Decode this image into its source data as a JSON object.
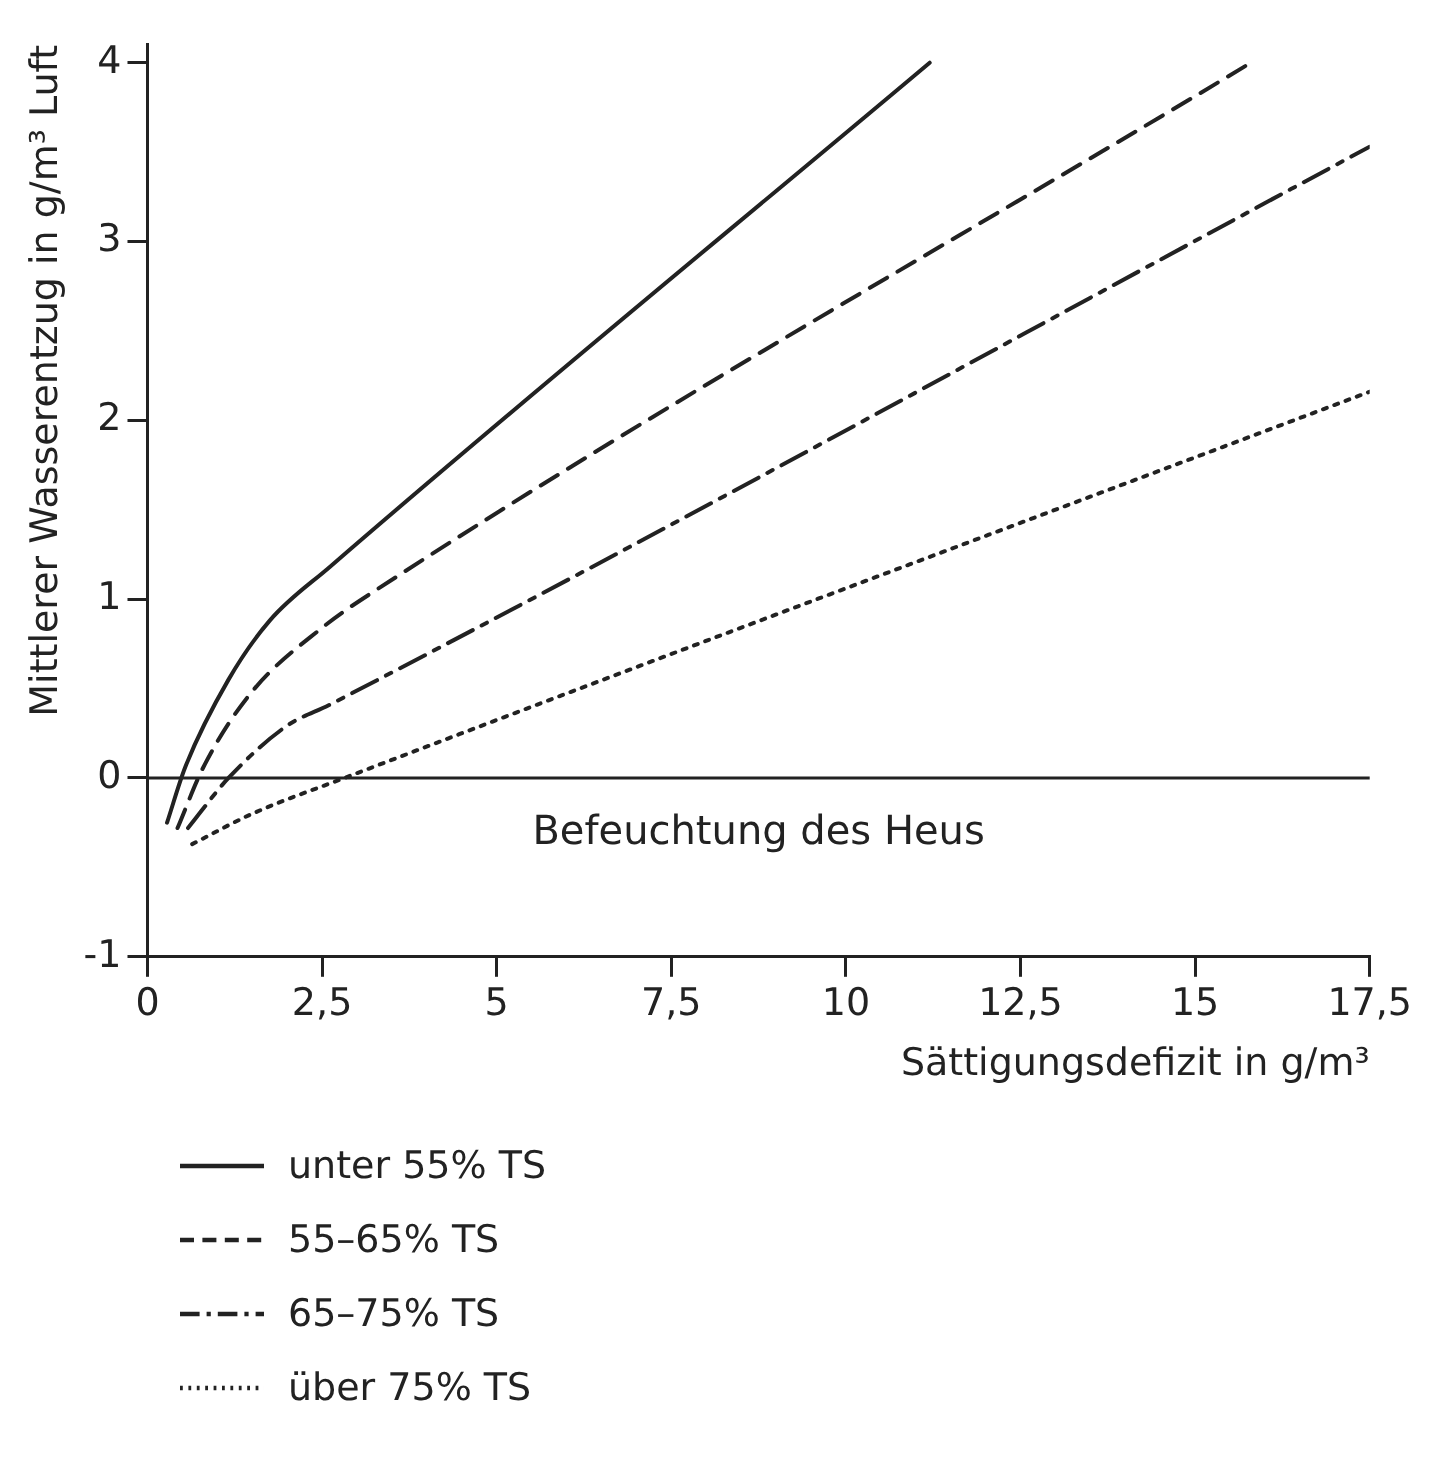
{
  "chart_data": {
    "type": "line",
    "xlabel": "Sättigungsdefizit in g/m³",
    "ylabel": "Mittlerer Wasserentzug in g/m³ Luft",
    "xlim": [
      0,
      17.5
    ],
    "ylim": [
      -1,
      4.1
    ],
    "xticks": [
      0,
      {
        "value": 2.5,
        "label": "2,5"
      },
      5,
      {
        "value": 7.5,
        "label": "7,5"
      },
      10,
      {
        "value": 12.5,
        "label": "12,5"
      },
      15,
      {
        "value": 17.5,
        "label": "17,5"
      }
    ],
    "yticks": [
      -1,
      0,
      1,
      2,
      3,
      4
    ],
    "grid": false,
    "legend": "bottom",
    "marker": "none",
    "ref_lines": [
      {
        "axis": "y",
        "value": 0,
        "color": "#222222"
      }
    ],
    "annotations": [
      "Befeuchtung des Heus"
    ],
    "series": [
      {
        "name": "unter 55% TS",
        "color": "#222222",
        "line_style": "solid",
        "x": [
          0.28,
          0.54,
          1.16,
          1.75,
          2.61,
          11.2
        ],
        "values": [
          -0.25,
          0.06,
          0.55,
          0.88,
          1.18,
          4.0
        ]
      },
      {
        "name": "55–65% TS",
        "color": "#222222",
        "line_style": "dashed",
        "x": [
          0.43,
          0.8,
          1.47,
          2.5,
          3.23,
          15.8
        ],
        "values": [
          -0.28,
          0.06,
          0.47,
          0.84,
          1.04,
          4.0
        ]
      },
      {
        "name": "65–75% TS",
        "color": "#222222",
        "line_style": "dashdot",
        "x": [
          0.58,
          1.16,
          1.99,
          2.61,
          17.5
        ],
        "values": [
          -0.28,
          0,
          0.29,
          0.41,
          3.53
        ]
      },
      {
        "name": "über 75% TS",
        "color": "#222222",
        "line_style": "dotted",
        "x": [
          0.64,
          1.5,
          2.82,
          17.5
        ],
        "values": [
          -0.37,
          -0.2,
          0,
          2.16
        ]
      }
    ]
  }
}
